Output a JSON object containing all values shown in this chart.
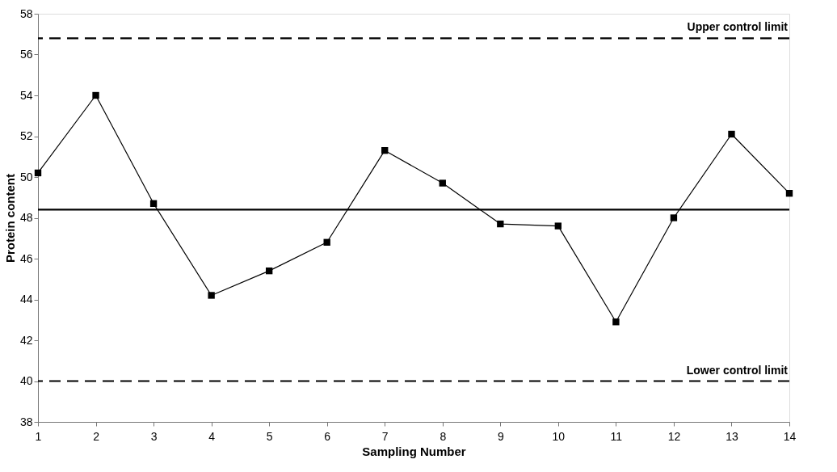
{
  "chart_data": {
    "type": "line",
    "xlabel": "Sampling Number",
    "ylabel": "Protein content",
    "x": [
      1,
      2,
      3,
      4,
      5,
      6,
      7,
      8,
      9,
      10,
      11,
      12,
      13,
      14
    ],
    "series": [
      {
        "color": "#000000",
        "values": [
          50.2,
          54.0,
          48.7,
          44.2,
          45.4,
          46.8,
          51.3,
          49.7,
          47.7,
          47.6,
          42.9,
          48.0,
          52.1,
          49.2
        ]
      }
    ],
    "xlim": [
      1,
      14
    ],
    "xticks": [
      1,
      2,
      3,
      4,
      5,
      6,
      7,
      8,
      9,
      10,
      11,
      12,
      13,
      14
    ],
    "ylim": [
      38,
      58
    ],
    "yticks": [
      38,
      40,
      42,
      44,
      46,
      48,
      50,
      52,
      54,
      56,
      58
    ],
    "ref_lines": [
      {
        "axis": "y",
        "value": 56.8,
        "label": "Upper control limit",
        "color": "#000000",
        "line_style": "dashed"
      },
      {
        "axis": "y",
        "value": 48.4,
        "color": "#000000",
        "line_style": "solid"
      },
      {
        "axis": "y",
        "value": 40.0,
        "label": "Lower control limit",
        "color": "#000000",
        "line_style": "dashed"
      }
    ],
    "grid": false,
    "marker": "square",
    "line_style": "solid"
  }
}
